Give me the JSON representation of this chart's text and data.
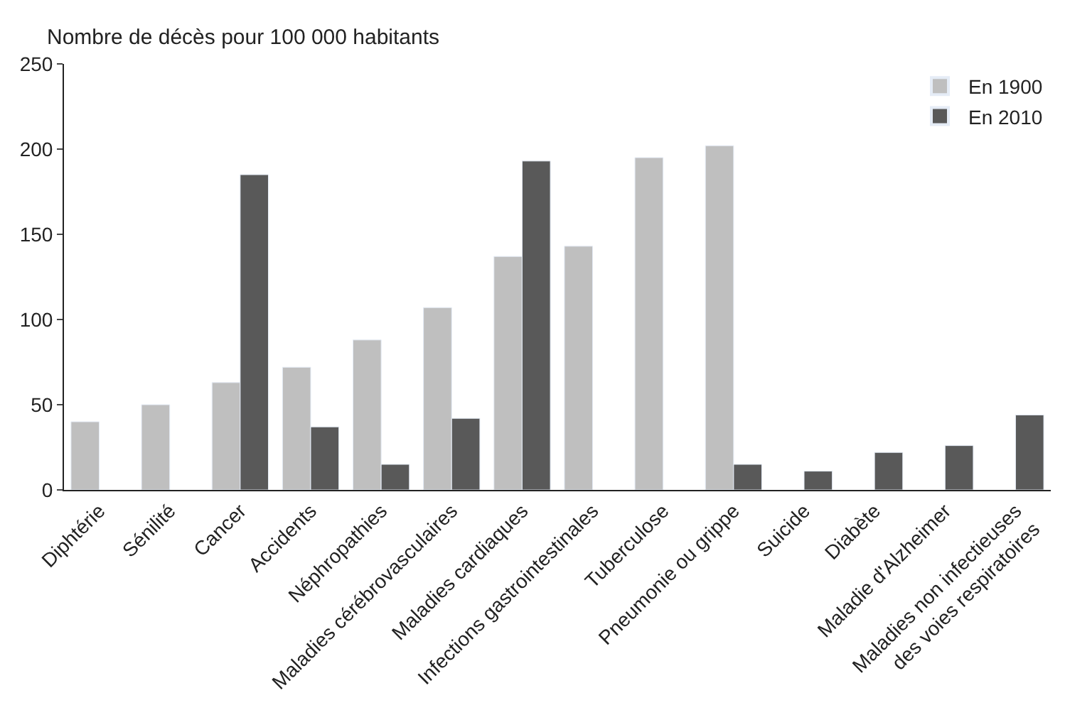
{
  "chart_data": {
    "type": "bar",
    "ylabel": "Nombre de décès pour 100 000 habitants",
    "categories": [
      "Diphtérie",
      "Sénilité",
      "Cancer",
      "Accidents",
      "Néphropathies",
      "Maladies cérébrovasculaires",
      "Maladies cardiaques",
      "Infections gastrointestinales",
      "Tuberculose",
      "Pneumonie ou grippe",
      "Suicide",
      "Diabète",
      "Maladie d'Alzheimer",
      "Maladies non infectieuses\ndes voies respiratoires"
    ],
    "series": [
      {
        "name": "En 1900",
        "color": "#bfbfbf",
        "values": [
          40,
          50,
          63,
          72,
          88,
          107,
          137,
          143,
          195,
          202,
          null,
          null,
          null,
          null
        ]
      },
      {
        "name": "En 2010",
        "color": "#595959",
        "values": [
          null,
          null,
          185,
          37,
          15,
          42,
          193,
          null,
          null,
          15,
          11,
          22,
          26,
          44
        ]
      }
    ],
    "ylim": [
      0,
      250
    ],
    "yticks": [
      0,
      50,
      100,
      150,
      200,
      250
    ],
    "legend": "top right"
  }
}
